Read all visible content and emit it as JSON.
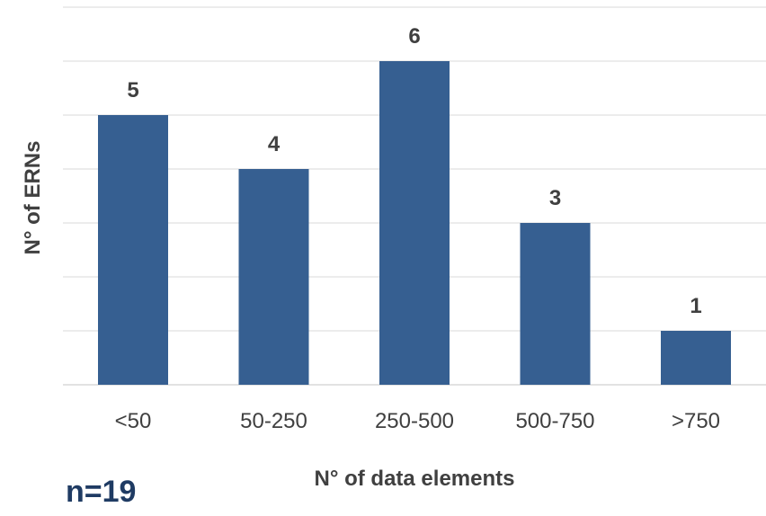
{
  "chart_data": {
    "type": "bar",
    "categories": [
      "<50",
      "50-250",
      "250-500",
      "500-750",
      ">750"
    ],
    "values": [
      5,
      4,
      6,
      3,
      1
    ],
    "data_labels": [
      "5",
      "4",
      "6",
      "3",
      "1"
    ],
    "xlabel": "N° of data elements",
    "ylabel": "N° of ERNs",
    "ylim": [
      0,
      7
    ],
    "grid": true,
    "bar_color": "#365f91",
    "gridline_color": "#d9d9d9",
    "label_color": "#404040"
  },
  "annotation": {
    "sample_size": "n=19",
    "color": "#1f3b63"
  }
}
